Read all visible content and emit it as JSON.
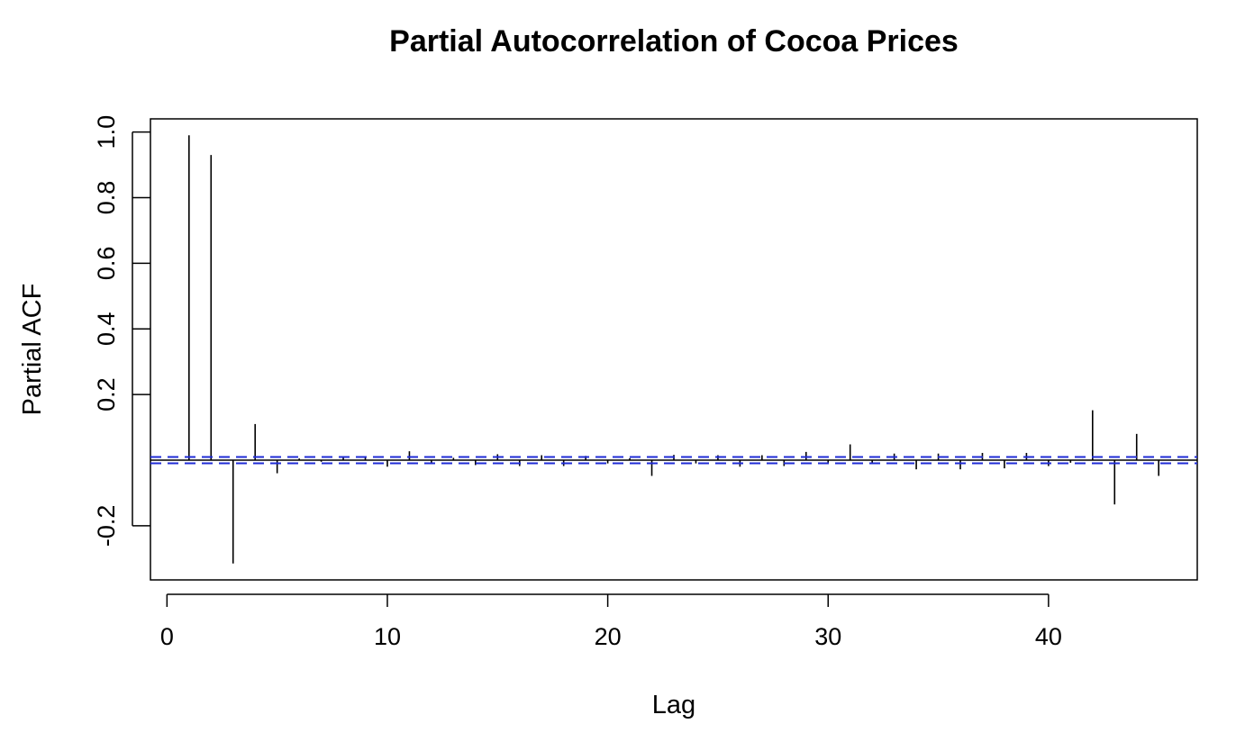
{
  "chart_data": {
    "type": "bar",
    "title": "Partial Autocorrelation of Cocoa Prices",
    "xlabel": "Lag",
    "ylabel": "Partial ACF",
    "xlim": [
      -0.75,
      46.75
    ],
    "ylim": [
      -0.365,
      1.04
    ],
    "xticks": [
      0,
      10,
      20,
      30,
      40
    ],
    "yticks": [
      -0.2,
      0.2,
      0.4,
      0.6,
      0.8,
      1.0
    ],
    "ytick_labels": [
      "-0.2",
      "0.2",
      "0.4",
      "0.6",
      "0.8",
      "1.0"
    ],
    "xtick_labels": [
      "0",
      "10",
      "20",
      "30",
      "40"
    ],
    "confidence_bound": 0.0095,
    "colors": {
      "bars": "#000000",
      "confidence": "#1f2bd6",
      "zero_line": "#000000"
    },
    "series": [
      {
        "lags": [
          1,
          2,
          3,
          4,
          5,
          6,
          7,
          8,
          9,
          10,
          11,
          12,
          13,
          14,
          15,
          16,
          17,
          18,
          19,
          20,
          21,
          22,
          23,
          24,
          25,
          26,
          27,
          28,
          29,
          30,
          31,
          32,
          33,
          34,
          35,
          36,
          37,
          38,
          39,
          40,
          41,
          42,
          43,
          44,
          45
        ],
        "values": [
          0.99,
          0.93,
          -0.315,
          0.11,
          -0.04,
          0.005,
          -0.005,
          0.008,
          0.012,
          -0.02,
          0.027,
          -0.012,
          0.007,
          -0.015,
          0.018,
          -0.018,
          0.015,
          -0.018,
          0.013,
          -0.01,
          0.006,
          -0.048,
          0.016,
          -0.01,
          0.015,
          -0.02,
          0.015,
          -0.018,
          0.025,
          -0.012,
          0.048,
          -0.01,
          0.02,
          -0.028,
          0.02,
          -0.028,
          0.022,
          -0.025,
          0.022,
          -0.018,
          -0.008,
          0.152,
          -0.135,
          0.08,
          -0.048
        ]
      }
    ]
  }
}
